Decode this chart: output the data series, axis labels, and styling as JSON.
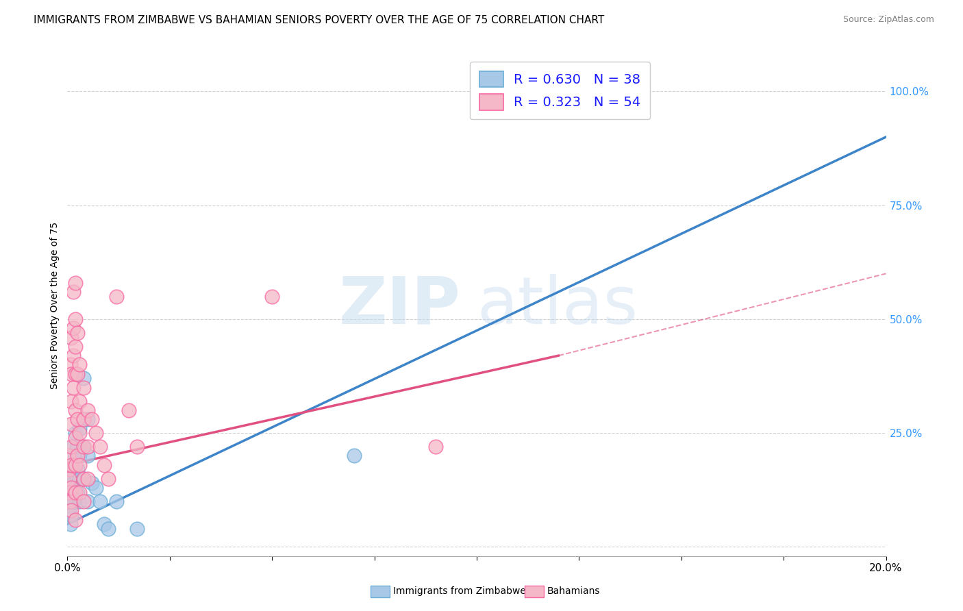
{
  "title": "IMMIGRANTS FROM ZIMBABWE VS BAHAMIAN SENIORS POVERTY OVER THE AGE OF 75 CORRELATION CHART",
  "source": "Source: ZipAtlas.com",
  "ylabel": "Seniors Poverty Over the Age of 75",
  "ytick_labels": [
    "",
    "25.0%",
    "50.0%",
    "75.0%",
    "100.0%"
  ],
  "ytick_values": [
    0.0,
    0.25,
    0.5,
    0.75,
    1.0
  ],
  "xlim": [
    0.0,
    0.2
  ],
  "ylim": [
    -0.02,
    1.08
  ],
  "watermark_line1": "ZIP",
  "watermark_line2": "atlas",
  "legend_r1": "R = 0.630",
  "legend_n1": "N = 38",
  "legend_r2": "R = 0.323",
  "legend_n2": "N = 54",
  "color_blue_face": "#a8c8e8",
  "color_blue_edge": "#6baed6",
  "color_pink_face": "#f4b8c8",
  "color_pink_edge": "#f768a1",
  "color_blue_line": "#3d85c8",
  "color_pink_line": "#e05080",
  "scatter_blue": [
    [
      0.0005,
      0.16
    ],
    [
      0.0005,
      0.12
    ],
    [
      0.0008,
      0.09
    ],
    [
      0.0008,
      0.05
    ],
    [
      0.001,
      0.17
    ],
    [
      0.001,
      0.13
    ],
    [
      0.001,
      0.1
    ],
    [
      0.001,
      0.07
    ],
    [
      0.0015,
      0.22
    ],
    [
      0.0015,
      0.18
    ],
    [
      0.0015,
      0.14
    ],
    [
      0.0015,
      0.1
    ],
    [
      0.002,
      0.25
    ],
    [
      0.002,
      0.2
    ],
    [
      0.002,
      0.16
    ],
    [
      0.002,
      0.13
    ],
    [
      0.0025,
      0.22
    ],
    [
      0.0025,
      0.17
    ],
    [
      0.0025,
      0.12
    ],
    [
      0.003,
      0.26
    ],
    [
      0.003,
      0.2
    ],
    [
      0.003,
      0.15
    ],
    [
      0.003,
      0.1
    ],
    [
      0.004,
      0.37
    ],
    [
      0.004,
      0.22
    ],
    [
      0.004,
      0.15
    ],
    [
      0.005,
      0.28
    ],
    [
      0.005,
      0.2
    ],
    [
      0.005,
      0.1
    ],
    [
      0.006,
      0.14
    ],
    [
      0.007,
      0.13
    ],
    [
      0.008,
      0.1
    ],
    [
      0.009,
      0.05
    ],
    [
      0.01,
      0.04
    ],
    [
      0.012,
      0.1
    ],
    [
      0.017,
      0.04
    ],
    [
      0.07,
      0.2
    ],
    [
      0.14,
      1.0
    ]
  ],
  "scatter_pink": [
    [
      0.0003,
      0.2
    ],
    [
      0.0005,
      0.17
    ],
    [
      0.0005,
      0.15
    ],
    [
      0.0005,
      0.12
    ],
    [
      0.0008,
      0.1
    ],
    [
      0.0008,
      0.4
    ],
    [
      0.001,
      0.46
    ],
    [
      0.001,
      0.38
    ],
    [
      0.001,
      0.32
    ],
    [
      0.001,
      0.27
    ],
    [
      0.001,
      0.22
    ],
    [
      0.001,
      0.18
    ],
    [
      0.001,
      0.13
    ],
    [
      0.001,
      0.08
    ],
    [
      0.0015,
      0.56
    ],
    [
      0.0015,
      0.48
    ],
    [
      0.0015,
      0.42
    ],
    [
      0.0015,
      0.35
    ],
    [
      0.002,
      0.58
    ],
    [
      0.002,
      0.5
    ],
    [
      0.002,
      0.44
    ],
    [
      0.002,
      0.38
    ],
    [
      0.002,
      0.3
    ],
    [
      0.002,
      0.24
    ],
    [
      0.002,
      0.18
    ],
    [
      0.002,
      0.12
    ],
    [
      0.002,
      0.06
    ],
    [
      0.0025,
      0.47
    ],
    [
      0.0025,
      0.38
    ],
    [
      0.0025,
      0.28
    ],
    [
      0.0025,
      0.2
    ],
    [
      0.003,
      0.4
    ],
    [
      0.003,
      0.32
    ],
    [
      0.003,
      0.25
    ],
    [
      0.003,
      0.18
    ],
    [
      0.003,
      0.12
    ],
    [
      0.004,
      0.35
    ],
    [
      0.004,
      0.28
    ],
    [
      0.004,
      0.22
    ],
    [
      0.004,
      0.15
    ],
    [
      0.004,
      0.1
    ],
    [
      0.005,
      0.3
    ],
    [
      0.005,
      0.22
    ],
    [
      0.005,
      0.15
    ],
    [
      0.006,
      0.28
    ],
    [
      0.007,
      0.25
    ],
    [
      0.008,
      0.22
    ],
    [
      0.009,
      0.18
    ],
    [
      0.01,
      0.15
    ],
    [
      0.012,
      0.55
    ],
    [
      0.015,
      0.3
    ],
    [
      0.017,
      0.22
    ],
    [
      0.05,
      0.55
    ],
    [
      0.09,
      0.22
    ]
  ],
  "trendline_blue": [
    [
      0.0,
      0.05
    ],
    [
      0.2,
      0.9
    ]
  ],
  "trendline_pink": [
    [
      0.0,
      0.18
    ],
    [
      0.12,
      0.42
    ]
  ],
  "trendline_pink_dashed": [
    [
      0.12,
      0.42
    ],
    [
      0.2,
      0.6
    ]
  ],
  "grid_color": "#cccccc",
  "background_color": "#ffffff",
  "title_fontsize": 11,
  "axis_label_fontsize": 10,
  "tick_fontsize": 10,
  "legend_fontsize": 14,
  "source_fontsize": 9
}
